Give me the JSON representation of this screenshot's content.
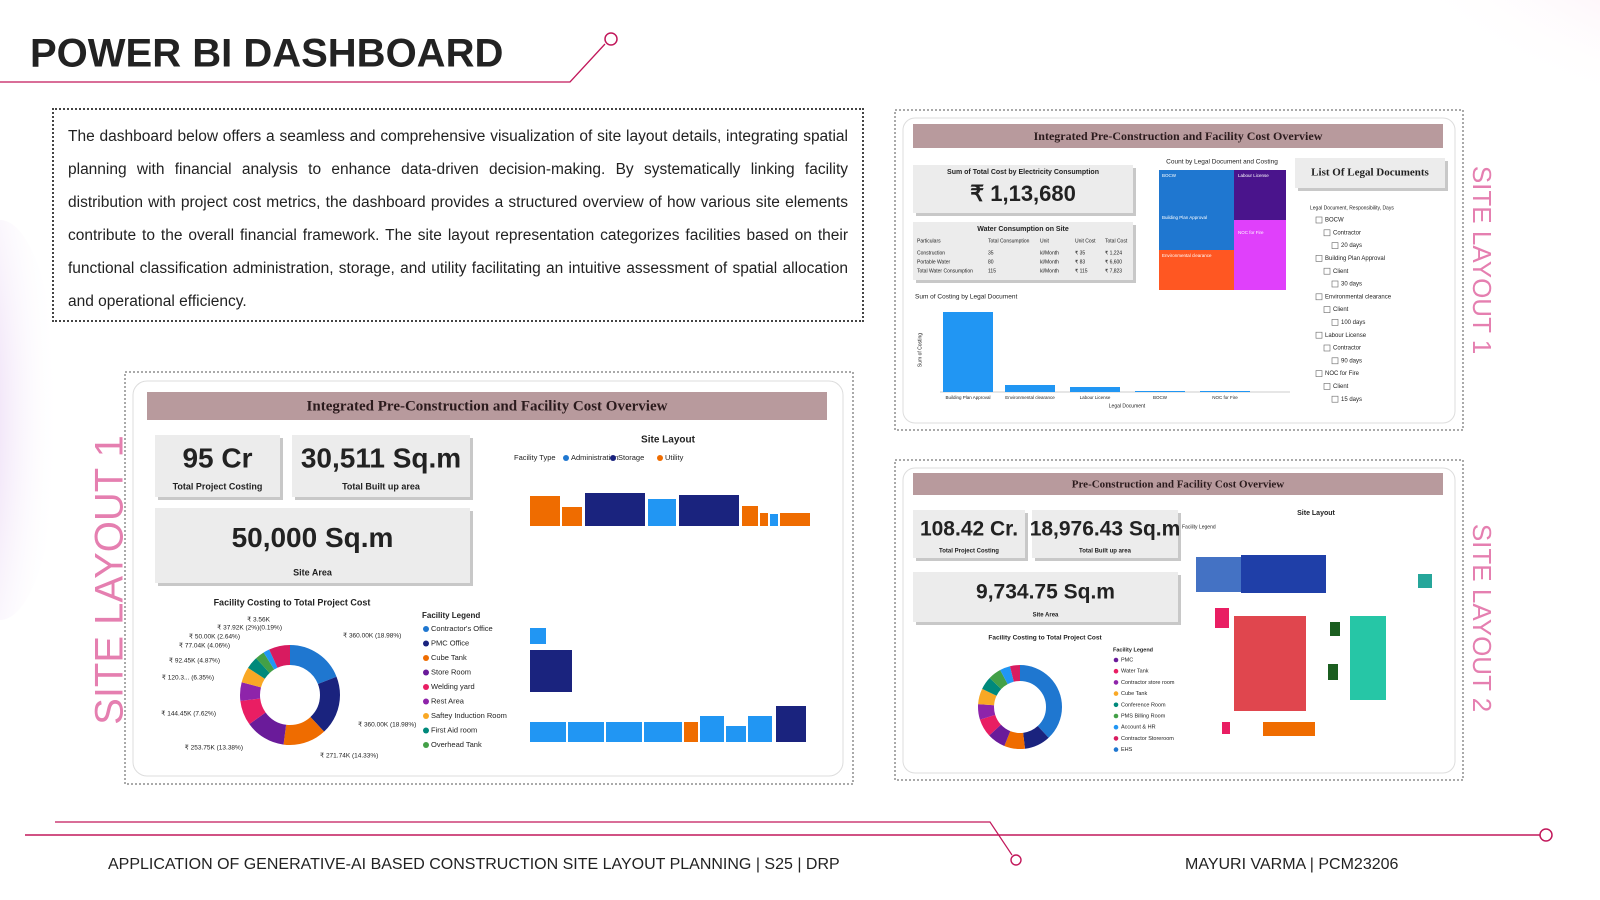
{
  "header": {
    "title": "POWER BI DASHBOARD"
  },
  "description": "The dashboard below offers a seamless and comprehensive visualization of site layout details, integrating spatial planning with financial analysis to enhance data-driven decision-making. By systematically linking facility distribution with project cost metrics, the dashboard provides a structured overview of how various site elements contribute to the overall financial framework. The site layout representation categorizes facilities based on their functional classification administration, storage, and utility facilitating an intuitive assessment of spatial allocation and operational efficiency.",
  "labels": {
    "left": "SITE LAYOUT 1",
    "right_top": "SITE LAYOUT 1",
    "right_bottom": "SITE LAYOUT 2"
  },
  "panel1": {
    "title": "Integrated Pre-Construction and Facility Cost Overview",
    "kpis": [
      {
        "value": "95 Cr",
        "label": "Total Project Costing"
      },
      {
        "value": "30,511 Sq.m",
        "label": "Total Built up area"
      },
      {
        "value": "50,000 Sq.m",
        "label": "Site Area"
      }
    ],
    "site_layout_title": "Site Layout",
    "facility_type": "Facility Type",
    "facility_types": [
      "Administration",
      "Storage",
      "Utility"
    ],
    "donut_title": "Facility Costing to Total Project Cost",
    "donut_labels": [
      "₹ 3.56K",
      "₹ 37.92K (2%)(0.19%)",
      "₹ 50.00K (2.64%)",
      "₹ 77.04K (4.06%)",
      "₹ 92.45K (4.87%)",
      "₹ 120.3... (6.35%)",
      "₹ 144.45K (7.62%)",
      "₹ 253.75K (13.38%)",
      "₹ 271.74K (14.33%)",
      "₹ 360.00K (18.98%)",
      "₹ 360.00K (18.98%)"
    ],
    "legend_title": "Facility Legend",
    "legend": [
      "Contractor's Office",
      "PMC Office",
      "Cube Tank",
      "Store Room",
      "Welding yard",
      "Rest Area",
      "Saftey Induction Room",
      "First Aid room",
      "Overhead Tank"
    ]
  },
  "panel2": {
    "title": "Integrated Pre-Construction and Facility Cost Overview",
    "kpi": {
      "value": "₹ 1,13,680",
      "label": "Sum of Total Cost by Electricity Consumption"
    },
    "water_title": "Water Consumption on Site",
    "water_header": [
      "Particulars",
      "Total Consumption",
      "Unit",
      "Unit Cost",
      "Total Cost"
    ],
    "water_rows": [
      [
        "Construction",
        "35",
        "kl/Month",
        "₹ 35",
        "₹ 1,224"
      ],
      [
        "Portable Water",
        "80",
        "kl/Month",
        "₹ 83",
        "₹ 6,600"
      ],
      [
        "Total Water Consumption",
        "115",
        "kl/Month",
        "₹ 115",
        "₹ 7,823"
      ]
    ],
    "treemap_title": "Count by Legal Document and Costing",
    "treemap_labels": [
      "BOCW",
      "Labour License",
      "Building Plan Approval",
      "NOC for Fire",
      "Environmental clearance"
    ],
    "chart_title": "Sum of Costing by Legal Document",
    "y_axis": "Sum of Costing",
    "x_axis": "Legal Document",
    "categories": [
      "Building Plan Approval",
      "Environmental clearance",
      "Labour License",
      "BOCW",
      "NOC for Fire"
    ],
    "list_title": "List Of Legal Documents",
    "list_header": "Legal Document, Responsibility, Days",
    "list": [
      "BOCW",
      "Contractor",
      "20 days",
      "Building Plan Approval",
      "Client",
      "30 days",
      "Environmental clearance",
      "Client",
      "100 days",
      "Labour License",
      "Contractor",
      "90 days",
      "NOC for Fire",
      "Client",
      "15 days"
    ]
  },
  "panel3": {
    "title": "Pre-Construction and Facility Cost Overview",
    "kpis": [
      {
        "value": "108.42 Cr.",
        "label": "Total Project Costing"
      },
      {
        "value": "18,976.43 Sq.m",
        "label": "Total Built up area"
      },
      {
        "value": "9,734.75 Sq.m",
        "label": "Site Area"
      }
    ],
    "site_layout_title": "Site Layout",
    "facility_legend": "Facility Legend",
    "donut_title": "Facility Costing to Total Project Cost",
    "legend_title": "Facility Legend",
    "legend": [
      "PMC",
      "Water Tank",
      "Contractor store room",
      "Cube Tank",
      "Conference Room",
      "PMS Billing Room",
      "Account & HR",
      "Contractor Storeroom",
      "EHS"
    ]
  },
  "footer": {
    "left": "APPLICATION OF GENERATIVE-AI BASED CONSTRUCTION SITE LAYOUT PLANNING | S25 | DRP",
    "right": "MAYURI VARMA | PCM23206"
  }
}
